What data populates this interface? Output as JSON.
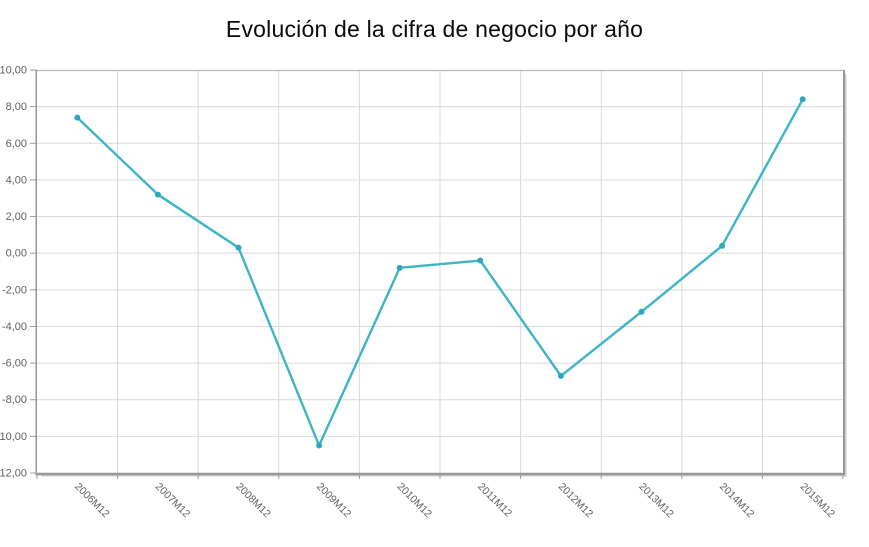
{
  "chart_data": {
    "type": "line",
    "title": "Evolución de la cifra de negocio por año",
    "categories": [
      "2006M12",
      "2007M12",
      "2008M12",
      "2009M12",
      "2010M12",
      "2011M12",
      "2012M12",
      "2013M12",
      "2014M12",
      "2015M12"
    ],
    "values": [
      7.4,
      3.2,
      0.3,
      -10.5,
      -0.8,
      -0.4,
      -6.7,
      -3.2,
      0.4,
      8.4
    ],
    "xlabel": "",
    "ylabel": "",
    "ylim": [
      -12,
      10
    ],
    "y_ticks": [
      10,
      8,
      6,
      4,
      2,
      0,
      -2,
      -4,
      -6,
      -8,
      -10,
      -12
    ],
    "y_tick_labels": [
      "10,00",
      "8,00",
      "6,00",
      "4,00",
      "2,00",
      "0,00",
      "-2,00",
      "-4,00",
      "-6,00",
      "-8,00",
      "-10,00",
      "-12,00"
    ],
    "grid": true,
    "legend_position": "none",
    "colors": {
      "line": "#3db5c4",
      "marker": "#2da7c0",
      "grid": "#d9d9d9",
      "frame": "#979797",
      "frame_top": "#b8b8b8",
      "shadow": "#cfcfcf",
      "tick": "#9a9a9a",
      "tick_text": "#5f5f5f",
      "title_text": "#0a0a0a"
    }
  }
}
